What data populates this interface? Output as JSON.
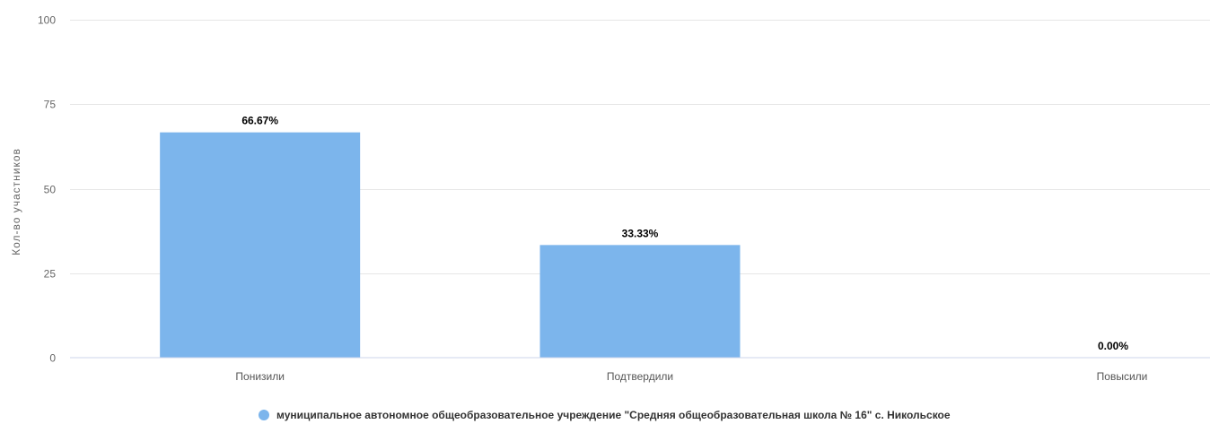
{
  "chart_data": {
    "type": "bar",
    "categories": [
      "Понизили",
      "Подтвердили",
      "Повысили"
    ],
    "series": [
      {
        "name": "муниципальное автономное общеобразовательное учреждение \"Средняя общеобразовательная школа № 16\" с. Никольское",
        "values": [
          66.67,
          33.33,
          0
        ],
        "labels": [
          "66.67%",
          "33.33%",
          "0.00%"
        ]
      }
    ],
    "ylabel": "Кол-во участников",
    "ylim": [
      0,
      100
    ],
    "yticks": [
      "0",
      "25",
      "50",
      "75",
      "100"
    ],
    "grid": true,
    "legend_position": "bottom-center",
    "colors": {
      "bar": "#7cb5ec",
      "grid": "#e6e6e6",
      "axis": "#ccd6eb"
    }
  }
}
